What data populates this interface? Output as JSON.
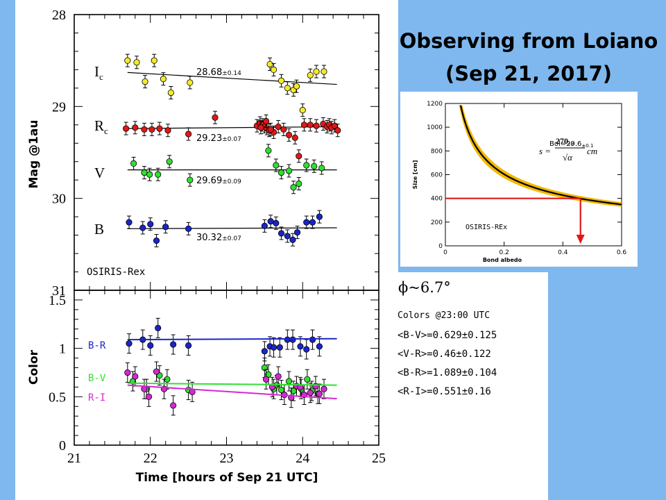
{
  "title": {
    "line1": "Observing from Loiano",
    "line2": "(Sep 21, 2017)"
  },
  "colors": {
    "background": "#7fb8ee",
    "yellow": "#f4ea2a",
    "red": "#e01818",
    "green": "#2fe02f",
    "blue": "#1a25c8",
    "magenta": "#d428d4",
    "orange": "#f2b800"
  },
  "phase": "ϕ~6.7°",
  "colors_info": {
    "heading": "Colors @23:00 UTC",
    "lines": [
      "<B-V>=0.629±0.125",
      "<V-R>=0.46±0.122",
      "<B-R>=1.089±0.104",
      "<R-I>=0.551±0.16"
    ]
  },
  "chart_data": [
    {
      "type": "scatter",
      "title": "",
      "xlabel": "",
      "ylabel": "Mag @1au",
      "ylim": [
        31,
        28
      ],
      "xlim": [
        21,
        25
      ],
      "y_ticks": [
        "28",
        "29",
        "30",
        "31"
      ],
      "annotation": "OSIRIS-Rex",
      "series": [
        {
          "name": "I_c",
          "label": "I",
          "sub": "c",
          "color": "yellow",
          "fit_text": "28.68±0.14",
          "fit": [
            [
              21.7,
              28.63
            ],
            [
              24.45,
              28.76
            ]
          ],
          "x": [
            21.7,
            21.82,
            21.93,
            22.05,
            22.17,
            22.27,
            22.52,
            23.57,
            23.62,
            23.72,
            23.8,
            23.88,
            23.92,
            24.0,
            24.1,
            24.18,
            24.28
          ],
          "y": [
            28.5,
            28.52,
            28.73,
            28.5,
            28.7,
            28.85,
            28.74,
            28.54,
            28.6,
            28.72,
            28.8,
            28.82,
            28.78,
            29.04,
            28.66,
            28.62,
            28.62
          ]
        },
        {
          "name": "R_c",
          "label": "R",
          "sub": "c",
          "color": "red",
          "fit_text": "29.23±0.07",
          "fit": [
            [
              21.7,
              29.24
            ],
            [
              24.45,
              29.22
            ]
          ],
          "x": [
            21.68,
            21.8,
            21.92,
            22.02,
            22.12,
            22.23,
            22.5,
            22.85,
            23.4,
            23.44,
            23.47,
            23.5,
            23.53,
            23.56,
            23.62,
            23.68,
            23.75,
            23.82,
            23.9,
            23.95,
            24.02,
            24.1,
            24.18,
            24.27,
            24.32,
            24.35,
            24.38,
            24.42,
            24.46,
            23.45,
            23.52,
            23.58
          ],
          "y": [
            29.24,
            29.23,
            29.25,
            29.25,
            29.24,
            29.26,
            29.3,
            29.12,
            29.21,
            29.18,
            29.2,
            29.22,
            29.24,
            29.26,
            29.28,
            29.22,
            29.25,
            29.31,
            29.34,
            29.54,
            29.2,
            29.2,
            29.21,
            29.19,
            29.22,
            29.2,
            29.23,
            29.21,
            29.26,
            29.23,
            29.16,
            29.25
          ]
        },
        {
          "name": "V",
          "label": "V",
          "sub": "",
          "color": "green",
          "fit_text": "29.69±0.09",
          "fit": [
            [
              21.7,
              29.69
            ],
            [
              24.45,
              29.69
            ]
          ],
          "x": [
            21.78,
            21.92,
            21.99,
            22.1,
            22.25,
            22.52,
            23.55,
            23.65,
            23.72,
            23.82,
            23.88,
            23.95,
            24.05,
            24.15,
            24.25
          ],
          "y": [
            29.62,
            29.72,
            29.74,
            29.74,
            29.6,
            29.8,
            29.48,
            29.64,
            29.72,
            29.7,
            29.88,
            29.84,
            29.64,
            29.65,
            29.67
          ]
        },
        {
          "name": "B",
          "label": "B",
          "sub": "",
          "color": "blue",
          "fit_text": "30.32±0.07",
          "fit": [
            [
              21.7,
              30.33
            ],
            [
              24.45,
              30.32
            ]
          ],
          "x": [
            21.72,
            21.9,
            22.0,
            22.08,
            22.2,
            22.5,
            23.5,
            23.58,
            23.65,
            23.72,
            23.8,
            23.87,
            23.93,
            24.05,
            24.13,
            24.22
          ],
          "y": [
            30.26,
            30.32,
            30.28,
            30.46,
            30.31,
            30.33,
            30.3,
            30.25,
            30.27,
            30.38,
            30.41,
            30.45,
            30.37,
            30.26,
            30.26,
            30.2
          ]
        }
      ]
    },
    {
      "type": "scatter",
      "title": "",
      "xlabel": "Time [hours of Sep 21 UTC]",
      "ylabel": "Color",
      "ylim": [
        0,
        1.6
      ],
      "xlim": [
        21,
        25
      ],
      "y_ticks": [
        "0",
        "0.5",
        "1",
        "1.5"
      ],
      "x_ticks": [
        "21",
        "22",
        "23",
        "24",
        "25"
      ],
      "series": [
        {
          "name": "B-R",
          "color": "blue",
          "fit": [
            [
              21.7,
              1.09
            ],
            [
              24.45,
              1.1
            ]
          ],
          "x": [
            21.72,
            21.9,
            22.0,
            22.1,
            22.3,
            22.5,
            23.5,
            23.57,
            23.62,
            23.7,
            23.8,
            23.87,
            23.97,
            24.05,
            24.13,
            24.22
          ],
          "y": [
            1.05,
            1.09,
            1.03,
            1.21,
            1.04,
            1.03,
            0.97,
            1.02,
            1.01,
            1.01,
            1.09,
            1.09,
            1.02,
            0.99,
            1.09,
            1.02
          ]
        },
        {
          "name": "B-V",
          "color": "green",
          "fit": [
            [
              21.7,
              0.64
            ],
            [
              24.45,
              0.62
            ]
          ],
          "x": [
            21.77,
            21.95,
            22.12,
            22.22,
            22.5,
            23.5,
            23.55,
            23.62,
            23.66,
            23.72,
            23.82,
            23.88,
            23.98,
            24.06,
            24.12,
            24.2
          ],
          "y": [
            0.66,
            0.58,
            0.72,
            0.68,
            0.57,
            0.8,
            0.73,
            0.58,
            0.62,
            0.57,
            0.66,
            0.56,
            0.58,
            0.68,
            0.56,
            0.53
          ]
        },
        {
          "name": "R-I",
          "color": "magenta",
          "fit": [
            [
              21.7,
              0.62
            ],
            [
              24.45,
              0.48
            ]
          ],
          "x": [
            21.7,
            21.8,
            21.92,
            21.98,
            22.08,
            22.18,
            22.3,
            22.55,
            23.52,
            23.6,
            23.68,
            23.76,
            23.85,
            23.92,
            23.97,
            24.02,
            24.1,
            24.17,
            24.22,
            24.28
          ],
          "y": [
            0.75,
            0.71,
            0.58,
            0.5,
            0.76,
            0.58,
            0.41,
            0.55,
            0.68,
            0.6,
            0.71,
            0.52,
            0.49,
            0.61,
            0.6,
            0.52,
            0.54,
            0.61,
            0.53,
            0.58
          ]
        }
      ]
    },
    {
      "type": "line",
      "title": "",
      "xlabel": "Bond albedo",
      "ylabel": "Size [cm]",
      "xlim": [
        0,
        0.6
      ],
      "ylim": [
        0,
        1200
      ],
      "x_ticks": [
        "0",
        "0.2",
        "0.4",
        "0.6"
      ],
      "y_ticks": [
        "0",
        "200",
        "400",
        "600",
        "800",
        "1000",
        "1200"
      ],
      "annotation_bol": "Bol=29.6",
      "annotation_bol_err": "±0.1",
      "formula": {
        "lhs": "s =",
        "num": "270",
        "num_err": "±15",
        "den": "√α",
        "unit": "cm"
      },
      "annotation": "OSIRIS-REx",
      "curve": {
        "coefficient": 270,
        "band": 15
      },
      "marker": {
        "size": 400,
        "albedo": 0.46
      }
    }
  ]
}
